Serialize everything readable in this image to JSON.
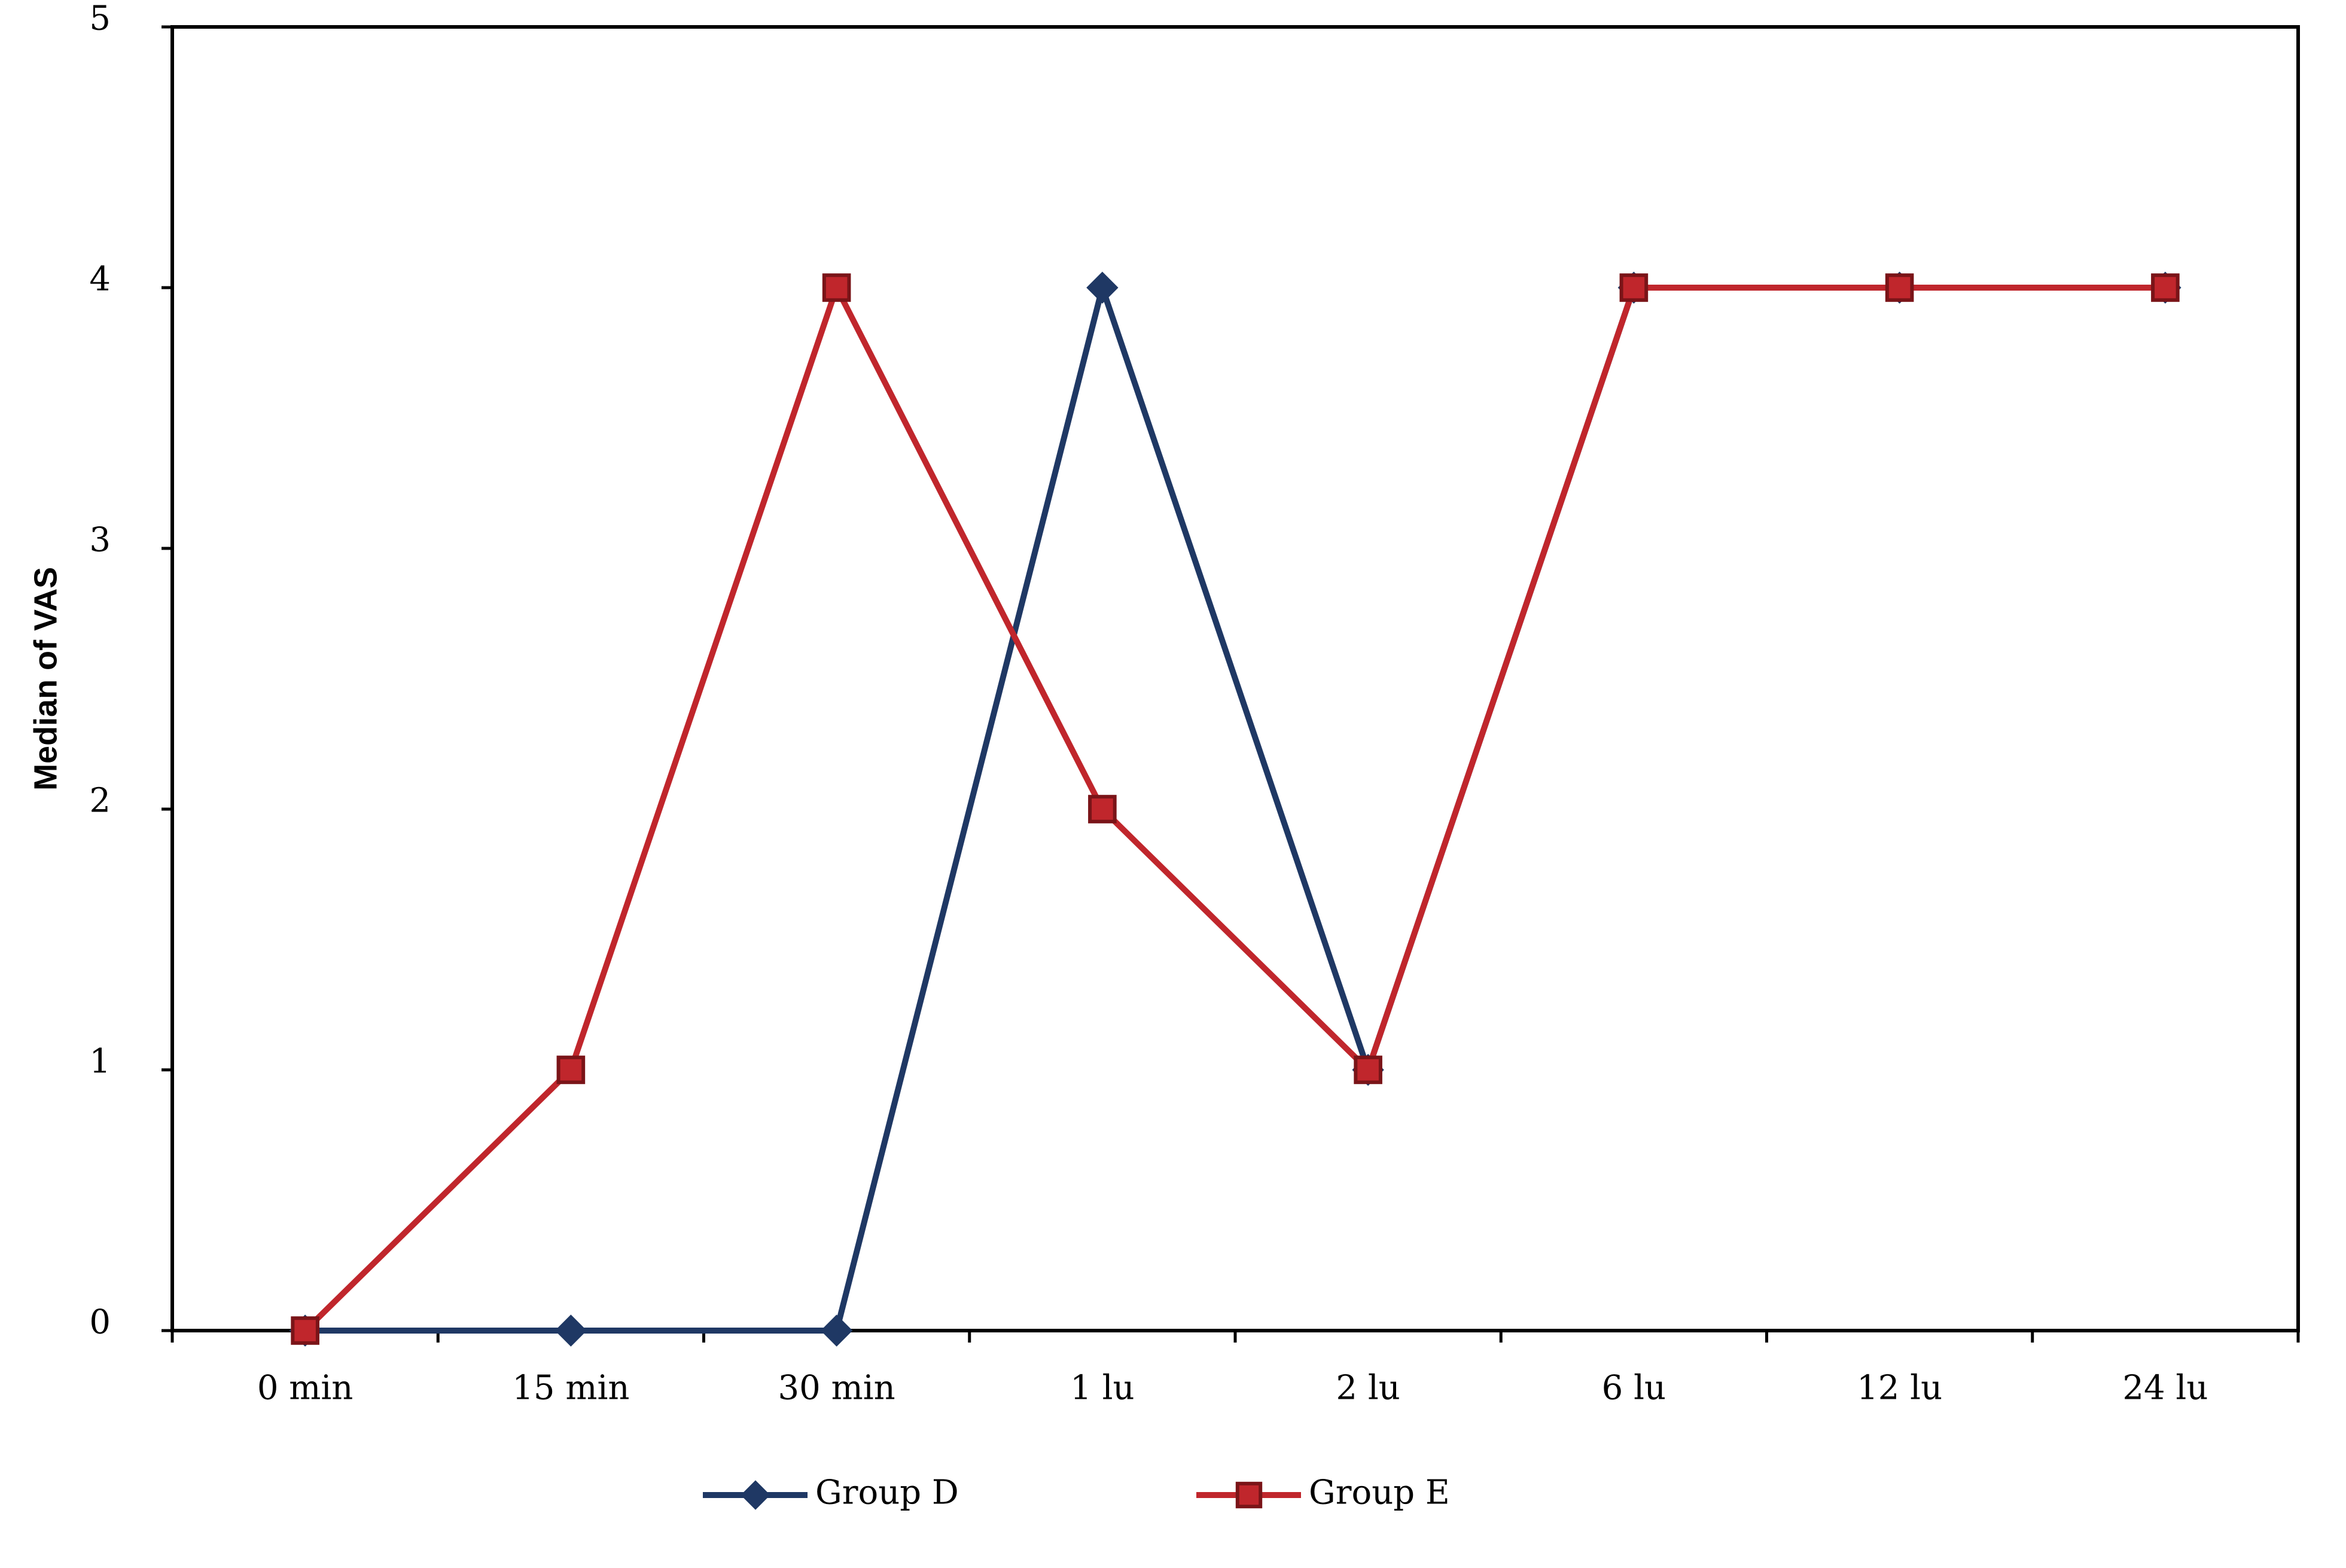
{
  "chart_data": {
    "type": "line",
    "y_label": "Median of VAS",
    "categories": [
      "0 min",
      "15 min",
      "30 min",
      "1 lu",
      "2 lu",
      "6 lu",
      "12 lu",
      "24 lu"
    ],
    "series": [
      {
        "name": "Group D",
        "color": "#1f3864",
        "marker": "diamond",
        "values": [
          0,
          0,
          0,
          4,
          1,
          4,
          4,
          4
        ]
      },
      {
        "name": "Group E",
        "color": "#c0262c",
        "marker": "square",
        "values": [
          0,
          1,
          4,
          2,
          1,
          4,
          4,
          4
        ]
      }
    ],
    "ylim": [
      0,
      5
    ],
    "yticks": [
      0,
      1,
      2,
      3,
      4,
      5
    ],
    "grid": false,
    "legend": "bottom"
  }
}
